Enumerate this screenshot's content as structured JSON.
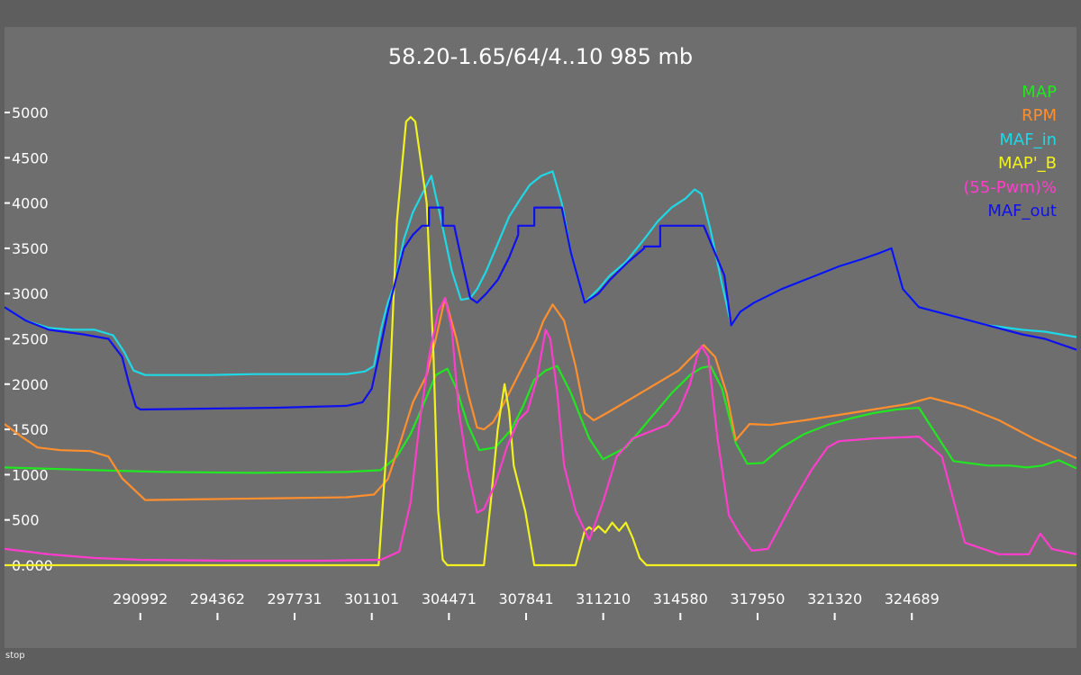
{
  "status_text": "stop",
  "chart_data": {
    "type": "line",
    "title": "58.20-1.65/64/4..10 985 mb",
    "xlabel": "",
    "ylabel": "",
    "y_ticks": [
      "5000",
      "4500",
      "4000",
      "3500",
      "3000",
      "2500",
      "2000",
      "1500",
      "1000",
      "500",
      "0.000"
    ],
    "y_tick_values": [
      5000,
      4500,
      4000,
      3500,
      3000,
      2500,
      2000,
      1500,
      1000,
      500,
      0
    ],
    "x_ticks": [
      "290992",
      "294362",
      "297731",
      "301101",
      "304471",
      "307841",
      "311210",
      "314580",
      "317950",
      "321320",
      "324689"
    ],
    "x_tick_values": [
      290992,
      294362,
      297731,
      301101,
      304471,
      307841,
      311210,
      314580,
      317950,
      321320,
      324689
    ],
    "xlim": [
      285060,
      331880
    ],
    "ylim": [
      0,
      5000
    ],
    "legend_position": "top-right",
    "series": [
      {
        "name": "MAP",
        "color": "#22e622",
        "x": [
          285060,
          289000,
          292000,
          296000,
          300000,
          301500,
          302200,
          302800,
          303400,
          303900,
          304400,
          304800,
          305300,
          305800,
          306500,
          307200,
          307700,
          308200,
          308700,
          309200,
          309800,
          310600,
          311200,
          312200,
          313200,
          314200,
          315000,
          315500,
          315900,
          316400,
          317000,
          317500,
          318200,
          319000,
          320000,
          321000,
          322000,
          323000,
          324000,
          325000,
          326500,
          328000,
          329000,
          329700,
          330400,
          331100,
          331880
        ],
        "y": [
          1080,
          1050,
          1030,
          1020,
          1030,
          1050,
          1200,
          1450,
          1800,
          2100,
          2170,
          1950,
          1550,
          1270,
          1300,
          1500,
          1750,
          2050,
          2150,
          2200,
          1900,
          1400,
          1170,
          1300,
          1600,
          1900,
          2100,
          2180,
          2200,
          1950,
          1350,
          1120,
          1130,
          1300,
          1450,
          1550,
          1620,
          1680,
          1720,
          1740,
          1150,
          1100,
          1100,
          1080,
          1100,
          1160,
          1070
        ]
      },
      {
        "name": "RPM",
        "color": "#ff8f2e",
        "x": [
          285060,
          285800,
          286500,
          287500,
          288800,
          289600,
          290200,
          291200,
          294000,
          297000,
          300000,
          301200,
          301800,
          302400,
          302900,
          303500,
          303900,
          304300,
          304800,
          305300,
          305700,
          306000,
          306400,
          306900,
          307400,
          307900,
          308300,
          308600,
          309000,
          309500,
          310000,
          310400,
          310800,
          311500,
          312500,
          313500,
          314500,
          315000,
          315600,
          316100,
          316600,
          317000,
          317600,
          318500,
          320000,
          321500,
          323000,
          324500,
          325500,
          327000,
          328500,
          330000,
          331880
        ],
        "y": [
          1560,
          1420,
          1300,
          1270,
          1260,
          1200,
          960,
          720,
          730,
          740,
          750,
          780,
          950,
          1400,
          1800,
          2100,
          2500,
          2950,
          2500,
          1900,
          1520,
          1500,
          1580,
          1800,
          2050,
          2300,
          2500,
          2700,
          2880,
          2700,
          2200,
          1680,
          1600,
          1700,
          1850,
          2000,
          2150,
          2280,
          2430,
          2300,
          1900,
          1380,
          1560,
          1550,
          1600,
          1660,
          1720,
          1780,
          1850,
          1750,
          1600,
          1400,
          1180
        ]
      },
      {
        "name": "MAF_in",
        "color": "#1fd8e6",
        "x": [
          285060,
          286000,
          287000,
          288000,
          289000,
          289800,
          290300,
          290700,
          291200,
          292000,
          294000,
          296000,
          298000,
          300000,
          300800,
          301200,
          301500,
          301800,
          302100,
          302500,
          302900,
          303300,
          303700,
          304100,
          304600,
          305000,
          305400,
          305700,
          306100,
          306600,
          307100,
          307600,
          308000,
          308500,
          309000,
          309400,
          309800,
          310400,
          311000,
          311500,
          312200,
          313000,
          313600,
          314200,
          314800,
          315200,
          315500,
          315900,
          316400,
          316800,
          317200,
          317800,
          319000,
          320500,
          321500,
          322500,
          323300,
          323800,
          324300,
          325000,
          326500,
          328000,
          329500,
          330500,
          331880
        ],
        "y": [
          2850,
          2700,
          2620,
          2600,
          2600,
          2540,
          2350,
          2150,
          2100,
          2100,
          2100,
          2110,
          2110,
          2110,
          2140,
          2200,
          2600,
          2900,
          3100,
          3600,
          3900,
          4100,
          4300,
          3850,
          3250,
          2930,
          2950,
          3050,
          3250,
          3550,
          3850,
          4050,
          4200,
          4300,
          4350,
          4000,
          3450,
          2900,
          3050,
          3200,
          3350,
          3600,
          3800,
          3950,
          4050,
          4150,
          4100,
          3700,
          3100,
          2650,
          2800,
          2900,
          3050,
          3200,
          3300,
          3380,
          3450,
          3500,
          3050,
          2850,
          2750,
          2650,
          2600,
          2580,
          2520
        ]
      },
      {
        "name": "MAP'_B",
        "color": "#f2f21e",
        "x": [
          285060,
          301000,
          301400,
          301800,
          302200,
          302600,
          302800,
          303000,
          303500,
          303800,
          304000,
          304200,
          304400,
          304600,
          305500,
          306000,
          306300,
          306600,
          306900,
          307100,
          307300,
          307500,
          307800,
          308000,
          308200,
          308500,
          309000,
          310000,
          310400,
          310600,
          310800,
          311000,
          311300,
          311600,
          311900,
          312200,
          312500,
          312800,
          313100,
          313400,
          313700,
          314000,
          314500,
          320000,
          331880
        ],
        "y": [
          0,
          0,
          0,
          1500,
          3800,
          4900,
          4950,
          4900,
          4000,
          2300,
          600,
          60,
          0,
          0,
          0,
          0,
          700,
          1500,
          2000,
          1700,
          1100,
          900,
          600,
          300,
          0,
          0,
          0,
          0,
          380,
          420,
          380,
          430,
          360,
          470,
          380,
          470,
          300,
          80,
          0,
          0,
          0,
          0,
          0,
          0,
          0
        ]
      },
      {
        "name": "(55-Pwm)%",
        "color": "#ff3dcc",
        "x": [
          285060,
          287000,
          289000,
          291000,
          295000,
          299000,
          301500,
          302300,
          302800,
          303200,
          303600,
          304000,
          304300,
          304600,
          304900,
          305300,
          305700,
          306000,
          306500,
          307000,
          307500,
          307900,
          308300,
          308700,
          308900,
          309200,
          309500,
          310000,
          310600,
          311200,
          311800,
          312500,
          313200,
          314000,
          314500,
          315000,
          315300,
          315500,
          315800,
          316200,
          316700,
          317200,
          317700,
          318400,
          319500,
          320300,
          321000,
          321500,
          323000,
          325000,
          326000,
          327000,
          328500,
          329800,
          330300,
          330800,
          331880
        ],
        "y": [
          180,
          120,
          80,
          60,
          50,
          50,
          60,
          150,
          700,
          1600,
          2300,
          2800,
          2950,
          2600,
          1700,
          1050,
          580,
          620,
          900,
          1300,
          1600,
          1700,
          2050,
          2600,
          2500,
          1900,
          1100,
          600,
          280,
          700,
          1200,
          1400,
          1470,
          1550,
          1700,
          2000,
          2300,
          2420,
          2300,
          1400,
          550,
          330,
          160,
          180,
          700,
          1050,
          1300,
          1370,
          1400,
          1420,
          1200,
          250,
          120,
          120,
          350,
          180,
          120
        ]
      },
      {
        "name": "MAF_out",
        "color": "#0f10ee",
        "x": [
          285060,
          286000,
          287000,
          288500,
          289600,
          290200,
          290500,
          290800,
          291000,
          294000,
          297000,
          300000,
          300700,
          301100,
          301400,
          301800,
          302100,
          302500,
          302900,
          303300,
          303300,
          303600,
          303600,
          304200,
          304200,
          304700,
          305000,
          305400,
          305700,
          306100,
          306600,
          307100,
          307500,
          307500,
          308200,
          308200,
          308600,
          308600,
          309400,
          309800,
          310400,
          311000,
          311500,
          312300,
          313000,
          313000,
          313700,
          313700,
          314300,
          314300,
          315000,
          315600,
          316500,
          316800,
          317200,
          317800,
          319000,
          320500,
          321500,
          322500,
          323300,
          323800,
          324300,
          325000,
          326500,
          328000,
          329500,
          330500,
          331880
        ],
        "y": [
          2850,
          2700,
          2600,
          2550,
          2500,
          2300,
          2000,
          1750,
          1720,
          1730,
          1740,
          1760,
          1800,
          1950,
          2300,
          2800,
          3100,
          3500,
          3650,
          3750,
          3750,
          3750,
          3950,
          3950,
          3750,
          3750,
          3400,
          2950,
          2900,
          3000,
          3150,
          3400,
          3650,
          3750,
          3750,
          3950,
          3950,
          3950,
          3950,
          3450,
          2900,
          3000,
          3150,
          3350,
          3500,
          3520,
          3520,
          3750,
          3750,
          3750,
          3750,
          3750,
          3200,
          2650,
          2800,
          2900,
          3050,
          3200,
          3300,
          3380,
          3450,
          3500,
          3050,
          2850,
          2750,
          2650,
          2550,
          2500,
          2380
        ]
      }
    ]
  }
}
